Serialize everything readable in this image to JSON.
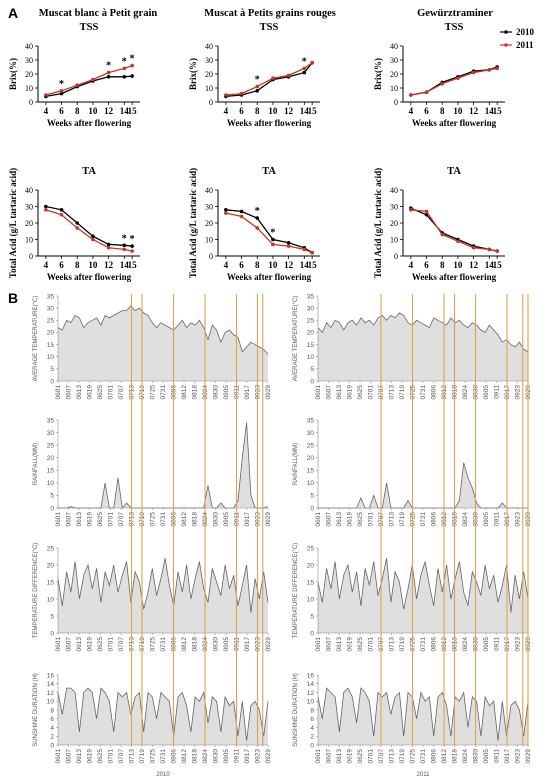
{
  "panel_a_label": "A",
  "panel_b_label": "B",
  "legend": [
    {
      "name": "2010",
      "color": "#000000"
    },
    {
      "name": "2011",
      "color": "#c0392b"
    }
  ],
  "colors": {
    "y2010": "#000000",
    "y2011": "#c0392b",
    "vline": "#e0a24a",
    "area_stroke": "#666666",
    "area_fill": "#d9d9d9"
  },
  "varieties": [
    "Muscat blanc à Petit grain",
    "Muscat à Petits grains rouges",
    "Gewürztraminer"
  ],
  "chart_data": [
    {
      "type": "line",
      "variety": "Muscat blanc à Petit grain",
      "title": "TSS",
      "xlabel": "Weeks after flowering",
      "ylabel": "Brix(%)",
      "x": [
        4,
        6,
        8,
        10,
        12,
        14,
        15
      ],
      "ylim": [
        0,
        40
      ],
      "yticks": [
        0,
        10,
        20,
        30,
        40
      ],
      "series": [
        {
          "name": "2010",
          "values": [
            4,
            6,
            11,
            15,
            18,
            18,
            18.5
          ]
        },
        {
          "name": "2011",
          "values": [
            5,
            8,
            12,
            16,
            21,
            24,
            26
          ]
        }
      ],
      "sig_x": [
        6,
        12,
        14,
        15
      ]
    },
    {
      "type": "line",
      "variety": "Muscat à Petits grains rouges",
      "title": "TSS",
      "xlabel": "Weeks after flowering",
      "ylabel": "Brix(%)",
      "x": [
        4,
        6,
        8,
        10,
        12,
        14,
        15
      ],
      "ylim": [
        0,
        40
      ],
      "yticks": [
        0,
        10,
        20,
        30,
        40
      ],
      "series": [
        {
          "name": "2010",
          "values": [
            4,
            5,
            8,
            16,
            18,
            21,
            28
          ]
        },
        {
          "name": "2011",
          "values": [
            5,
            6,
            11,
            17,
            19,
            24,
            28
          ]
        }
      ],
      "sig_x": [
        8,
        14
      ]
    },
    {
      "type": "line",
      "variety": "Gewürztraminer",
      "title": "TSS",
      "xlabel": "Weeks after flowering",
      "ylabel": "Brix(%)",
      "x": [
        4,
        6,
        8,
        10,
        12,
        14,
        15
      ],
      "ylim": [
        0,
        40
      ],
      "yticks": [
        0,
        10,
        20,
        30,
        40
      ],
      "series": [
        {
          "name": "2010",
          "values": [
            5,
            7,
            14,
            18,
            22,
            23,
            25
          ]
        },
        {
          "name": "2011",
          "values": [
            5,
            7,
            13,
            17,
            21,
            23,
            24
          ]
        }
      ],
      "sig_x": []
    },
    {
      "type": "line",
      "variety": "Muscat blanc à Petit grain",
      "title": "TA",
      "xlabel": "Weeks after flowering",
      "ylabel": "Total Acid (g/L tartaric acid)",
      "x": [
        4,
        6,
        8,
        10,
        12,
        14,
        15
      ],
      "ylim": [
        0,
        40
      ],
      "yticks": [
        0,
        10,
        20,
        30,
        40
      ],
      "series": [
        {
          "name": "2010",
          "values": [
            30,
            28,
            20,
            12,
            7,
            6.5,
            6
          ]
        },
        {
          "name": "2011",
          "values": [
            28,
            25,
            17,
            10,
            5,
            4,
            3
          ]
        }
      ],
      "sig_x": [
        14,
        15
      ]
    },
    {
      "type": "line",
      "variety": "Muscat à Petits grains rouges",
      "title": "TA",
      "xlabel": "Weeks after flowering",
      "ylabel": "Total Acid (g/L tartaric acid)",
      "x": [
        4,
        6,
        8,
        10,
        12,
        14,
        15
      ],
      "ylim": [
        0,
        40
      ],
      "yticks": [
        0,
        10,
        20,
        30,
        40
      ],
      "series": [
        {
          "name": "2010",
          "values": [
            28,
            27,
            23,
            10,
            8,
            5,
            2
          ]
        },
        {
          "name": "2011",
          "values": [
            26,
            24,
            17,
            7,
            6,
            4,
            2
          ]
        }
      ],
      "sig_x": [
        8,
        10
      ]
    },
    {
      "type": "line",
      "variety": "Gewürztraminer",
      "title": "TA",
      "xlabel": "Weeks after flowering",
      "ylabel": "Total Acid (g/L tartaric acid)",
      "x": [
        4,
        6,
        8,
        10,
        12,
        14,
        15
      ],
      "ylim": [
        0,
        40
      ],
      "yticks": [
        0,
        10,
        20,
        30,
        40
      ],
      "series": [
        {
          "name": "2010",
          "values": [
            29,
            25,
            14,
            10,
            6,
            4,
            3
          ]
        },
        {
          "name": "2011",
          "values": [
            28,
            27,
            13,
            9,
            5,
            4,
            3
          ]
        }
      ],
      "sig_x": []
    }
  ],
  "weather": {
    "years": [
      "2010",
      "2011"
    ],
    "dates": [
      "0601",
      "0607",
      "0613",
      "0619",
      "0625",
      "0701",
      "0707",
      "0713",
      "0719",
      "0725",
      "0731",
      "0806",
      "0812",
      "0818",
      "0824",
      "0830",
      "0905",
      "0911",
      "0917",
      "0923",
      "0929"
    ],
    "vlines": {
      "2010": [
        "0713",
        "0719",
        "0806",
        "0824",
        "0911",
        "0923",
        "0926"
      ],
      "2011": [
        "0707",
        "0725",
        "0812",
        "0818",
        "0830",
        "0917",
        "0926",
        "0929"
      ]
    },
    "rows": [
      {
        "ylabel": "AVERAGE TEMPERATURE(°C)",
        "ylim": [
          0,
          35
        ],
        "yticks": [
          0,
          5,
          10,
          15,
          20,
          25,
          30,
          35
        ],
        "series": {
          "2010": [
            22,
            21,
            25,
            24,
            27,
            26,
            22,
            24,
            25,
            26,
            23,
            27,
            26,
            27,
            28,
            29,
            29,
            31,
            29,
            30,
            28,
            27,
            24,
            22,
            24,
            23,
            22,
            21,
            23,
            25,
            22,
            24,
            23,
            25,
            22,
            17,
            23,
            21,
            16,
            20,
            21,
            19,
            18,
            12,
            14,
            16,
            15,
            14,
            13,
            11
          ],
          "2011": [
            22,
            20,
            24,
            22,
            25,
            24,
            21,
            24,
            25,
            23,
            26,
            24,
            25,
            23,
            26,
            27,
            25,
            27,
            26,
            28,
            27,
            24,
            23,
            25,
            24,
            23,
            22,
            26,
            25,
            24,
            23,
            26,
            24,
            25,
            23,
            22,
            24,
            23,
            21,
            20,
            23,
            21,
            19,
            16,
            17,
            15,
            14,
            16,
            13,
            12
          ]
        }
      },
      {
        "ylabel": "RAINFALL(MM)",
        "ylim": [
          0,
          35
        ],
        "yticks": [
          0,
          5,
          10,
          15,
          20,
          25,
          30,
          35
        ],
        "series": {
          "2010": [
            0,
            0,
            0,
            0.5,
            0,
            0,
            0,
            0,
            0,
            0,
            0,
            10,
            0,
            0,
            12,
            0,
            2,
            0,
            0,
            0,
            0,
            0,
            0,
            0,
            0,
            0,
            0,
            0,
            0,
            0,
            0,
            0,
            0,
            0,
            0,
            9,
            0,
            0,
            2,
            0,
            0,
            0,
            3,
            20,
            34,
            5,
            0,
            0,
            0,
            0.5
          ],
          "2011": [
            0,
            0,
            0,
            0,
            0,
            0,
            0,
            0,
            0,
            0,
            4,
            0,
            0,
            5,
            0,
            0,
            10,
            0,
            0,
            0,
            0,
            3,
            0,
            0,
            0,
            0,
            0,
            0,
            0,
            0,
            0,
            0,
            0,
            3,
            18,
            12,
            8,
            2,
            0,
            0,
            0,
            0,
            0,
            2,
            0,
            0,
            0,
            0,
            0,
            0
          ]
        }
      },
      {
        "ylabel": "TEMPERATURE DIFFERENCE(°C)",
        "ylim": [
          0,
          25
        ],
        "yticks": [
          0,
          5,
          10,
          15,
          20,
          25
        ],
        "series": {
          "2010": [
            16,
            8,
            18,
            12,
            21,
            10,
            17,
            20,
            13,
            19,
            9,
            18,
            14,
            20,
            12,
            17,
            21,
            9,
            18,
            15,
            7,
            12,
            19,
            11,
            16,
            22,
            14,
            8,
            18,
            12,
            20,
            10,
            16,
            21,
            13,
            9,
            19,
            15,
            11,
            20,
            13,
            17,
            8,
            14,
            20,
            6,
            16,
            10,
            18,
            9
          ],
          "2011": [
            15,
            9,
            19,
            13,
            21,
            10,
            17,
            20,
            12,
            18,
            8,
            19,
            14,
            21,
            11,
            16,
            22,
            9,
            18,
            15,
            7,
            13,
            20,
            10,
            17,
            21,
            14,
            8,
            19,
            12,
            20,
            10,
            16,
            21,
            12,
            8,
            18,
            15,
            11,
            20,
            13,
            17,
            9,
            14,
            20,
            6,
            17,
            10,
            18,
            10
          ]
        }
      },
      {
        "ylabel": "SUNSHINE DURATION (H)",
        "ylim": [
          0,
          16
        ],
        "yticks": [
          0,
          2,
          4,
          6,
          8,
          10,
          12,
          14,
          16
        ],
        "series": {
          "2010": [
            12,
            7,
            13,
            13,
            12,
            3,
            12,
            13,
            12,
            6,
            13,
            12,
            10,
            3,
            12,
            11,
            12,
            7,
            11,
            12,
            3,
            12,
            11,
            6,
            12,
            11,
            10,
            2,
            11,
            12,
            9,
            3,
            11,
            10,
            12,
            5,
            11,
            10,
            3,
            11,
            9,
            10,
            2,
            10,
            1,
            9,
            10,
            8,
            2,
            10
          ],
          "2011": [
            11,
            6,
            13,
            12,
            11,
            3,
            12,
            13,
            11,
            5,
            13,
            12,
            10,
            2,
            12,
            11,
            12,
            7,
            11,
            12,
            2,
            12,
            11,
            6,
            12,
            10,
            11,
            2,
            11,
            12,
            9,
            2,
            11,
            10,
            12,
            4,
            11,
            10,
            2,
            11,
            9,
            10,
            1,
            10,
            2,
            9,
            10,
            8,
            2,
            10
          ]
        }
      }
    ]
  }
}
